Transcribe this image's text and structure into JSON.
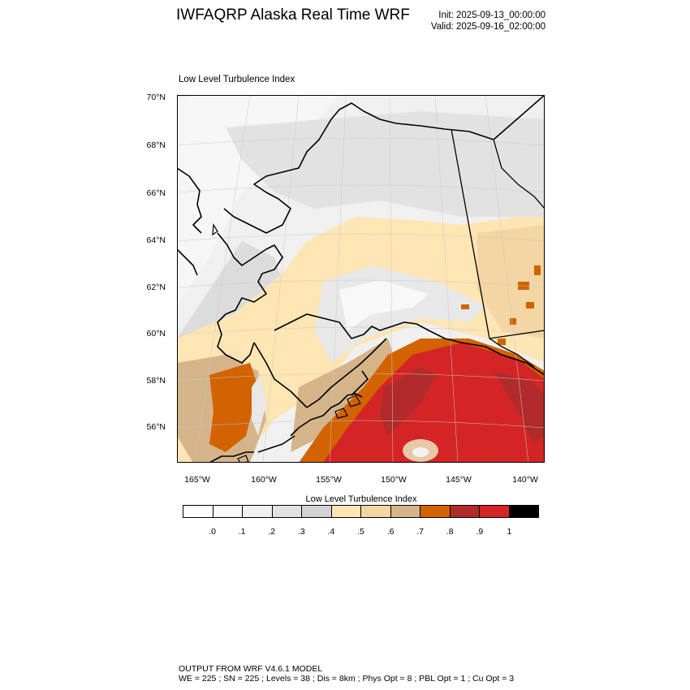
{
  "header": {
    "title": "IWFAQRP Alaska Real Time WRF",
    "init": "Init: 2025-09-13_00:00:00",
    "valid": "Valid: 2025-09-16_02:00:00"
  },
  "panel": {
    "title": "Low Level Turbulence Index"
  },
  "map": {
    "lat_labels": [
      "70°N",
      "68°N",
      "66°N",
      "64°N",
      "62°N",
      "60°N",
      "58°N",
      "56°N"
    ],
    "lon_labels": [
      "165°W",
      "160°W",
      "155°W",
      "150°W",
      "145°W",
      "140°W"
    ],
    "coast_color": "#000000"
  },
  "colorbar": {
    "title": "Low Level Turbulence Index",
    "colors": [
      "#ffffff",
      "#f9f9f9",
      "#f0f0f0",
      "#e2e2e2",
      "#d3d3d3",
      "#fde5b4",
      "#f3d6a3",
      "#d6b48a",
      "#d26300",
      "#b12b2b",
      "#d32525",
      "#000000"
    ],
    "labels": [
      ".0",
      ".1",
      ".2",
      ".3",
      ".4",
      ".5",
      ".6",
      ".7",
      ".8",
      ".9",
      "1"
    ]
  },
  "footer": {
    "line1": "OUTPUT FROM WRF V4.6.1 MODEL",
    "line2": "WE = 225 ; SN = 225 ; Levels = 38 ; Dis = 8km ; Phys Opt = 8 ; PBL Opt = 1 ; Cu Opt = 3"
  }
}
